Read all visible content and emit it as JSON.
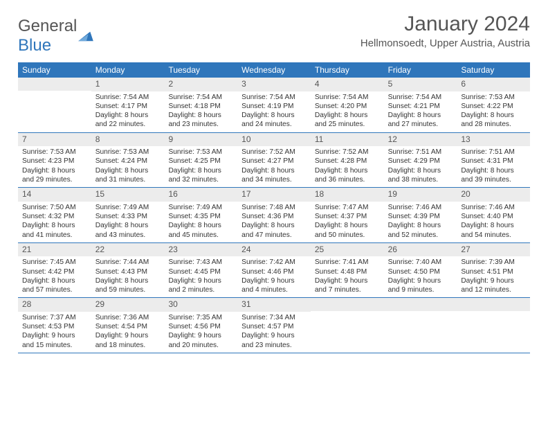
{
  "brand": {
    "part1": "General",
    "part2": "Blue"
  },
  "title": "January 2024",
  "location": "Hellmonsoedt, Upper Austria, Austria",
  "colors": {
    "header_bg": "#2f76bb",
    "header_text": "#ffffff",
    "daynum_bg": "#ececec",
    "text": "#333333",
    "rule": "#2f76bb"
  },
  "weekdays": [
    "Sunday",
    "Monday",
    "Tuesday",
    "Wednesday",
    "Thursday",
    "Friday",
    "Saturday"
  ],
  "weeks": [
    [
      {
        "n": "",
        "sr": "",
        "ss": "",
        "dl": ""
      },
      {
        "n": "1",
        "sr": "Sunrise: 7:54 AM",
        "ss": "Sunset: 4:17 PM",
        "dl": "Daylight: 8 hours and 22 minutes."
      },
      {
        "n": "2",
        "sr": "Sunrise: 7:54 AM",
        "ss": "Sunset: 4:18 PM",
        "dl": "Daylight: 8 hours and 23 minutes."
      },
      {
        "n": "3",
        "sr": "Sunrise: 7:54 AM",
        "ss": "Sunset: 4:19 PM",
        "dl": "Daylight: 8 hours and 24 minutes."
      },
      {
        "n": "4",
        "sr": "Sunrise: 7:54 AM",
        "ss": "Sunset: 4:20 PM",
        "dl": "Daylight: 8 hours and 25 minutes."
      },
      {
        "n": "5",
        "sr": "Sunrise: 7:54 AM",
        "ss": "Sunset: 4:21 PM",
        "dl": "Daylight: 8 hours and 27 minutes."
      },
      {
        "n": "6",
        "sr": "Sunrise: 7:53 AM",
        "ss": "Sunset: 4:22 PM",
        "dl": "Daylight: 8 hours and 28 minutes."
      }
    ],
    [
      {
        "n": "7",
        "sr": "Sunrise: 7:53 AM",
        "ss": "Sunset: 4:23 PM",
        "dl": "Daylight: 8 hours and 29 minutes."
      },
      {
        "n": "8",
        "sr": "Sunrise: 7:53 AM",
        "ss": "Sunset: 4:24 PM",
        "dl": "Daylight: 8 hours and 31 minutes."
      },
      {
        "n": "9",
        "sr": "Sunrise: 7:53 AM",
        "ss": "Sunset: 4:25 PM",
        "dl": "Daylight: 8 hours and 32 minutes."
      },
      {
        "n": "10",
        "sr": "Sunrise: 7:52 AM",
        "ss": "Sunset: 4:27 PM",
        "dl": "Daylight: 8 hours and 34 minutes."
      },
      {
        "n": "11",
        "sr": "Sunrise: 7:52 AM",
        "ss": "Sunset: 4:28 PM",
        "dl": "Daylight: 8 hours and 36 minutes."
      },
      {
        "n": "12",
        "sr": "Sunrise: 7:51 AM",
        "ss": "Sunset: 4:29 PM",
        "dl": "Daylight: 8 hours and 38 minutes."
      },
      {
        "n": "13",
        "sr": "Sunrise: 7:51 AM",
        "ss": "Sunset: 4:31 PM",
        "dl": "Daylight: 8 hours and 39 minutes."
      }
    ],
    [
      {
        "n": "14",
        "sr": "Sunrise: 7:50 AM",
        "ss": "Sunset: 4:32 PM",
        "dl": "Daylight: 8 hours and 41 minutes."
      },
      {
        "n": "15",
        "sr": "Sunrise: 7:49 AM",
        "ss": "Sunset: 4:33 PM",
        "dl": "Daylight: 8 hours and 43 minutes."
      },
      {
        "n": "16",
        "sr": "Sunrise: 7:49 AM",
        "ss": "Sunset: 4:35 PM",
        "dl": "Daylight: 8 hours and 45 minutes."
      },
      {
        "n": "17",
        "sr": "Sunrise: 7:48 AM",
        "ss": "Sunset: 4:36 PM",
        "dl": "Daylight: 8 hours and 47 minutes."
      },
      {
        "n": "18",
        "sr": "Sunrise: 7:47 AM",
        "ss": "Sunset: 4:37 PM",
        "dl": "Daylight: 8 hours and 50 minutes."
      },
      {
        "n": "19",
        "sr": "Sunrise: 7:46 AM",
        "ss": "Sunset: 4:39 PM",
        "dl": "Daylight: 8 hours and 52 minutes."
      },
      {
        "n": "20",
        "sr": "Sunrise: 7:46 AM",
        "ss": "Sunset: 4:40 PM",
        "dl": "Daylight: 8 hours and 54 minutes."
      }
    ],
    [
      {
        "n": "21",
        "sr": "Sunrise: 7:45 AM",
        "ss": "Sunset: 4:42 PM",
        "dl": "Daylight: 8 hours and 57 minutes."
      },
      {
        "n": "22",
        "sr": "Sunrise: 7:44 AM",
        "ss": "Sunset: 4:43 PM",
        "dl": "Daylight: 8 hours and 59 minutes."
      },
      {
        "n": "23",
        "sr": "Sunrise: 7:43 AM",
        "ss": "Sunset: 4:45 PM",
        "dl": "Daylight: 9 hours and 2 minutes."
      },
      {
        "n": "24",
        "sr": "Sunrise: 7:42 AM",
        "ss": "Sunset: 4:46 PM",
        "dl": "Daylight: 9 hours and 4 minutes."
      },
      {
        "n": "25",
        "sr": "Sunrise: 7:41 AM",
        "ss": "Sunset: 4:48 PM",
        "dl": "Daylight: 9 hours and 7 minutes."
      },
      {
        "n": "26",
        "sr": "Sunrise: 7:40 AM",
        "ss": "Sunset: 4:50 PM",
        "dl": "Daylight: 9 hours and 9 minutes."
      },
      {
        "n": "27",
        "sr": "Sunrise: 7:39 AM",
        "ss": "Sunset: 4:51 PM",
        "dl": "Daylight: 9 hours and 12 minutes."
      }
    ],
    [
      {
        "n": "28",
        "sr": "Sunrise: 7:37 AM",
        "ss": "Sunset: 4:53 PM",
        "dl": "Daylight: 9 hours and 15 minutes."
      },
      {
        "n": "29",
        "sr": "Sunrise: 7:36 AM",
        "ss": "Sunset: 4:54 PM",
        "dl": "Daylight: 9 hours and 18 minutes."
      },
      {
        "n": "30",
        "sr": "Sunrise: 7:35 AM",
        "ss": "Sunset: 4:56 PM",
        "dl": "Daylight: 9 hours and 20 minutes."
      },
      {
        "n": "31",
        "sr": "Sunrise: 7:34 AM",
        "ss": "Sunset: 4:57 PM",
        "dl": "Daylight: 9 hours and 23 minutes."
      },
      {
        "n": "",
        "sr": "",
        "ss": "",
        "dl": ""
      },
      {
        "n": "",
        "sr": "",
        "ss": "",
        "dl": ""
      },
      {
        "n": "",
        "sr": "",
        "ss": "",
        "dl": ""
      }
    ]
  ]
}
